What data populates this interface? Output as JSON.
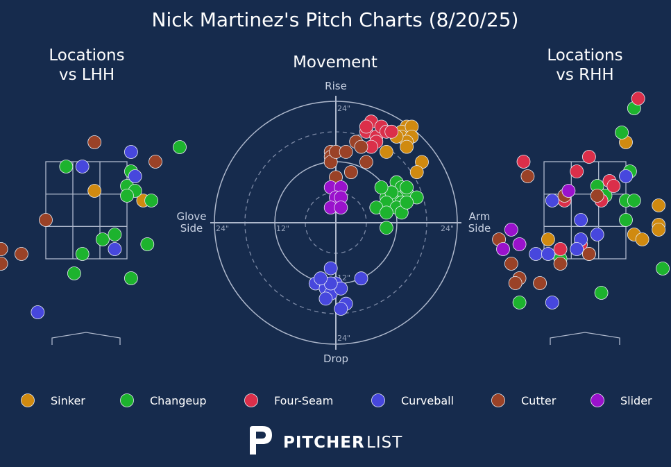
{
  "title": "Nick Martinez's Pitch Charts (8/20/25)",
  "panels": {
    "lhh_title_line1": "Locations",
    "lhh_title_line2": "vs LHH",
    "movement_title": "Movement",
    "rhh_title_line1": "Locations",
    "rhh_title_line2": "vs RHH"
  },
  "movement_axes": {
    "top": "Rise",
    "bottom": "Drop",
    "left_line1": "Glove",
    "left_line2": "Side",
    "right_line1": "Arm",
    "right_line2": "Side",
    "ring_labels": {
      "r12": "12\"",
      "r24": "24\""
    }
  },
  "brand": {
    "bold": "PITCHER",
    "light": "LIST"
  },
  "colors": {
    "background": "#162b4d",
    "Sinker": "#d08a10",
    "Changeup": "#1db32e",
    "Four-Seam": "#db2f4a",
    "Curveball": "#4747dd",
    "Cutter": "#9a4227",
    "Slider": "#9a12cc"
  },
  "chart_data": [
    {
      "type": "scatter",
      "panel": "movement",
      "title": "Movement",
      "units": "inches",
      "radial_range": [
        0,
        24
      ],
      "x_direction_labels": [
        "Glove Side",
        "Arm Side"
      ],
      "y_direction_labels": [
        "Drop",
        "Rise"
      ],
      "series": [
        {
          "name": "Sinker",
          "points": [
            [
              14,
              19
            ],
            [
              13,
              18
            ],
            [
              13,
              17
            ],
            [
              15,
              19
            ],
            [
              15,
              17
            ],
            [
              10,
              14
            ],
            [
              14,
              16
            ],
            [
              17,
              12
            ],
            [
              16,
              10
            ],
            [
              12,
              17
            ],
            [
              14,
              15
            ]
          ]
        },
        {
          "name": "Changeup",
          "points": [
            [
              12,
              8
            ],
            [
              13,
              7
            ],
            [
              14,
              6
            ],
            [
              12,
              5
            ],
            [
              11,
              4
            ],
            [
              10,
              5
            ],
            [
              12,
              4
            ],
            [
              13,
              4
            ],
            [
              11,
              6
            ],
            [
              9,
              7
            ],
            [
              10,
              4
            ],
            [
              13,
              3
            ],
            [
              12,
              3
            ],
            [
              14,
              7
            ],
            [
              16,
              5
            ],
            [
              8,
              3
            ],
            [
              10,
              2
            ],
            [
              13,
              2
            ],
            [
              14,
              4
            ],
            [
              10,
              -1
            ]
          ]
        },
        {
          "name": "Four-Seam",
          "points": [
            [
              7,
              20
            ],
            [
              6,
              18
            ],
            [
              8,
              17
            ],
            [
              9,
              19
            ],
            [
              10,
              18
            ],
            [
              11,
              18
            ],
            [
              8,
              16
            ],
            [
              6,
              19
            ],
            [
              7,
              15
            ]
          ]
        },
        {
          "name": "Curveball",
          "points": [
            [
              -1,
              -9
            ],
            [
              -4,
              -12
            ],
            [
              -2,
              -12
            ],
            [
              -1,
              -13
            ],
            [
              0,
              -12
            ],
            [
              -2,
              -13
            ],
            [
              -1,
              -14
            ],
            [
              -2,
              -15
            ],
            [
              1,
              -13
            ],
            [
              2,
              -16
            ],
            [
              1,
              -17
            ],
            [
              -1,
              -12
            ],
            [
              5,
              -11
            ],
            [
              -3,
              -11
            ]
          ]
        },
        {
          "name": "Cutter",
          "points": [
            [
              -1,
              14
            ],
            [
              -1,
              13
            ],
            [
              -1,
              12
            ],
            [
              0,
              14
            ],
            [
              2,
              14
            ],
            [
              4,
              16
            ],
            [
              5,
              15
            ],
            [
              6,
              12
            ],
            [
              3,
              10
            ],
            [
              0,
              9
            ]
          ]
        },
        {
          "name": "Slider",
          "points": [
            [
              -1,
              7
            ],
            [
              1,
              7
            ],
            [
              0,
              5
            ],
            [
              1,
              5
            ],
            [
              -1,
              3
            ],
            [
              1,
              3
            ]
          ]
        }
      ]
    },
    {
      "type": "scatter",
      "panel": "locations_vs_lhh",
      "title": "Locations vs LHH",
      "units": "feet (plate_x, plate_z)",
      "xlim": [
        -3.0,
        3.0
      ],
      "ylim": [
        0.0,
        5.4
      ],
      "series": [
        {
          "name": "Sinker",
          "points": [
            [
              0.2,
              2.9
            ],
            [
              1.4,
              2.7
            ]
          ]
        },
        {
          "name": "Changeup",
          "points": [
            [
              2.3,
              3.8
            ],
            [
              -0.5,
              3.4
            ],
            [
              1.1,
              3.3
            ],
            [
              1.0,
              3.0
            ],
            [
              1.2,
              2.9
            ],
            [
              1.0,
              2.8
            ],
            [
              1.6,
              2.7
            ],
            [
              0.4,
              1.9
            ],
            [
              0.7,
              2.0
            ],
            [
              1.5,
              1.8
            ],
            [
              -0.1,
              1.6
            ],
            [
              -0.3,
              1.2
            ],
            [
              1.1,
              1.1
            ]
          ]
        },
        {
          "name": "Four-Seam",
          "points": []
        },
        {
          "name": "Curveball",
          "points": [
            [
              1.1,
              3.7
            ],
            [
              -0.1,
              3.4
            ],
            [
              1.2,
              3.2
            ],
            [
              0.7,
              1.7
            ],
            [
              -1.2,
              0.4
            ]
          ]
        },
        {
          "name": "Cutter",
          "points": [
            [
              0.2,
              3.9
            ],
            [
              1.7,
              3.5
            ],
            [
              -1.0,
              2.3
            ],
            [
              -2.1,
              1.7
            ],
            [
              -1.6,
              1.6
            ],
            [
              -2.1,
              1.4
            ]
          ]
        },
        {
          "name": "Slider",
          "points": []
        }
      ]
    },
    {
      "type": "scatter",
      "panel": "locations_vs_rhh",
      "title": "Locations vs RHH",
      "units": "feet (plate_x, plate_z)",
      "xlim": [
        -3.0,
        3.0
      ],
      "ylim": [
        0.0,
        5.4
      ],
      "series": [
        {
          "name": "Sinker",
          "points": [
            [
              1.0,
              3.9
            ],
            [
              2.5,
              4.0
            ],
            [
              1.8,
              2.6
            ],
            [
              1.8,
              2.2
            ],
            [
              1.8,
              2.1
            ],
            [
              1.2,
              2.0
            ],
            [
              1.4,
              1.9
            ],
            [
              -0.9,
              1.9
            ]
          ]
        },
        {
          "name": "Changeup",
          "points": [
            [
              2.6,
              4.3
            ],
            [
              1.2,
              4.6
            ],
            [
              0.9,
              4.1
            ],
            [
              1.1,
              3.3
            ],
            [
              0.3,
              3.0
            ],
            [
              0.5,
              2.8
            ],
            [
              1.0,
              2.7
            ],
            [
              1.2,
              2.7
            ],
            [
              1.0,
              2.3
            ],
            [
              0.1,
              1.6
            ],
            [
              -0.6,
              1.5
            ],
            [
              1.9,
              1.3
            ],
            [
              0.4,
              0.8
            ],
            [
              -1.6,
              0.6
            ]
          ]
        },
        {
          "name": "Four-Seam",
          "points": [
            [
              1.3,
              4.8
            ],
            [
              0.1,
              3.6
            ],
            [
              -1.5,
              3.5
            ],
            [
              -0.2,
              3.3
            ],
            [
              0.6,
              3.1
            ],
            [
              0.7,
              3.0
            ],
            [
              -0.5,
              2.7
            ],
            [
              0.4,
              2.7
            ],
            [
              -0.1,
              1.8
            ],
            [
              -0.6,
              1.7
            ]
          ]
        },
        {
          "name": "Curveball",
          "points": [
            [
              1.0,
              3.2
            ],
            [
              -0.8,
              2.7
            ],
            [
              -0.1,
              2.3
            ],
            [
              0.3,
              2.0
            ],
            [
              -0.1,
              1.9
            ],
            [
              -0.2,
              1.7
            ],
            [
              -1.2,
              1.6
            ],
            [
              -0.9,
              1.6
            ],
            [
              -0.8,
              0.6
            ]
          ]
        },
        {
          "name": "Cutter",
          "points": [
            [
              -1.4,
              3.2
            ],
            [
              -0.5,
              2.8
            ],
            [
              0.3,
              2.8
            ],
            [
              -2.1,
              1.9
            ],
            [
              0.1,
              1.6
            ],
            [
              -1.8,
              1.4
            ],
            [
              -0.6,
              1.4
            ],
            [
              -1.6,
              1.1
            ],
            [
              -1.7,
              1.0
            ],
            [
              -1.1,
              1.0
            ]
          ]
        },
        {
          "name": "Slider",
          "points": [
            [
              -0.4,
              2.9
            ],
            [
              -1.8,
              2.1
            ],
            [
              -1.6,
              1.8
            ],
            [
              -2.0,
              1.7
            ]
          ]
        }
      ]
    }
  ],
  "legend": [
    {
      "name": "Sinker"
    },
    {
      "name": "Changeup"
    },
    {
      "name": "Four-Seam"
    },
    {
      "name": "Curveball"
    },
    {
      "name": "Cutter"
    },
    {
      "name": "Slider"
    }
  ]
}
